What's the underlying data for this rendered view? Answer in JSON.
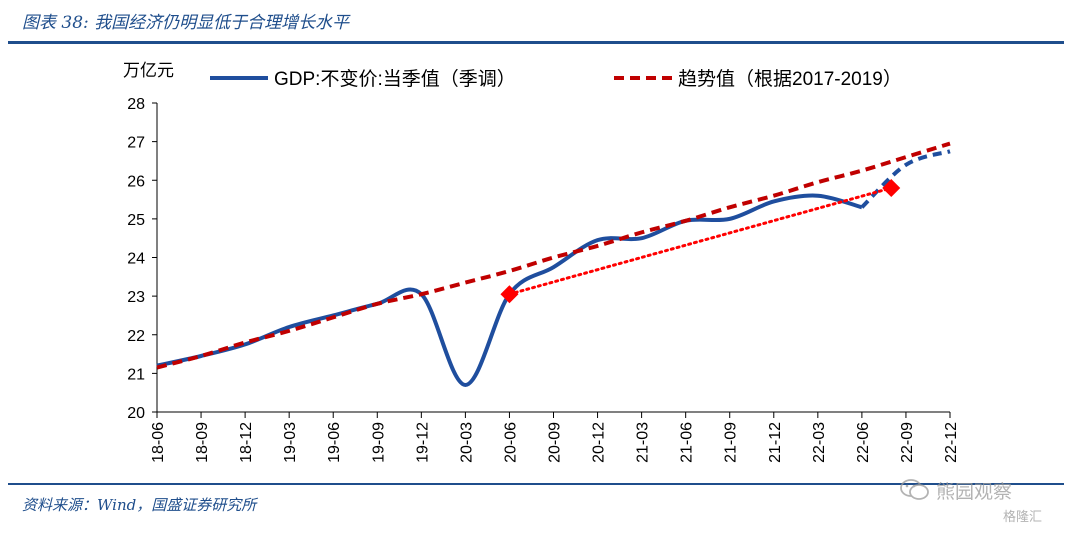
{
  "header": {
    "title": "图表 38: 我国经济仍明显低于合理增长水平"
  },
  "footer": {
    "source": "资料来源：Wind，国盛证券研究所"
  },
  "watermark": {
    "icon": "wechat-icon",
    "text": "熊园观察",
    "brand": "格隆汇"
  },
  "chart_data": {
    "type": "line",
    "ylabel": "万亿元",
    "ylim": [
      20,
      28
    ],
    "yticks": [
      20,
      21,
      22,
      23,
      24,
      25,
      26,
      27,
      28
    ],
    "categories": [
      "18-06",
      "18-09",
      "18-12",
      "19-03",
      "19-06",
      "19-09",
      "19-12",
      "20-03",
      "20-06",
      "20-09",
      "20-12",
      "21-03",
      "21-06",
      "21-09",
      "21-12",
      "22-03",
      "22-06",
      "22-09",
      "22-12"
    ],
    "legend_position": "top",
    "series": [
      {
        "name": "GDP:不变价:当季值（季调）",
        "color": "#1F4E9E",
        "style": "solid",
        "values": [
          21.2,
          21.45,
          21.75,
          22.2,
          22.5,
          22.8,
          23.05,
          20.7,
          23.05,
          23.75,
          24.45,
          24.5,
          24.95,
          25.0,
          25.45,
          25.6,
          25.3,
          null,
          null
        ]
      },
      {
        "name": "",
        "color": "#1F4E9E",
        "style": "dashed",
        "values": [
          null,
          null,
          null,
          null,
          null,
          null,
          null,
          null,
          null,
          null,
          null,
          null,
          null,
          null,
          null,
          null,
          25.3,
          26.4,
          26.75
        ]
      },
      {
        "name": "趋势值（根据2017-2019）",
        "color": "#C00000",
        "style": "dashed",
        "values": [
          21.15,
          21.45,
          21.8,
          22.1,
          22.45,
          22.8,
          23.05,
          23.35,
          23.65,
          24.0,
          24.3,
          24.65,
          24.95,
          25.3,
          25.6,
          25.95,
          26.25,
          26.6,
          26.95
        ]
      }
    ],
    "annotations": [
      {
        "type": "dotted-line",
        "color": "#FF0000",
        "from": {
          "x": "20-06",
          "y": 23.05
        },
        "to": {
          "x": "22-08",
          "y": 25.8
        }
      },
      {
        "type": "diamond-marker",
        "color": "#FF0000",
        "x": "20-06",
        "y": 23.05
      },
      {
        "type": "diamond-marker",
        "color": "#FF0000",
        "x": "22-08",
        "y": 25.8
      }
    ]
  }
}
